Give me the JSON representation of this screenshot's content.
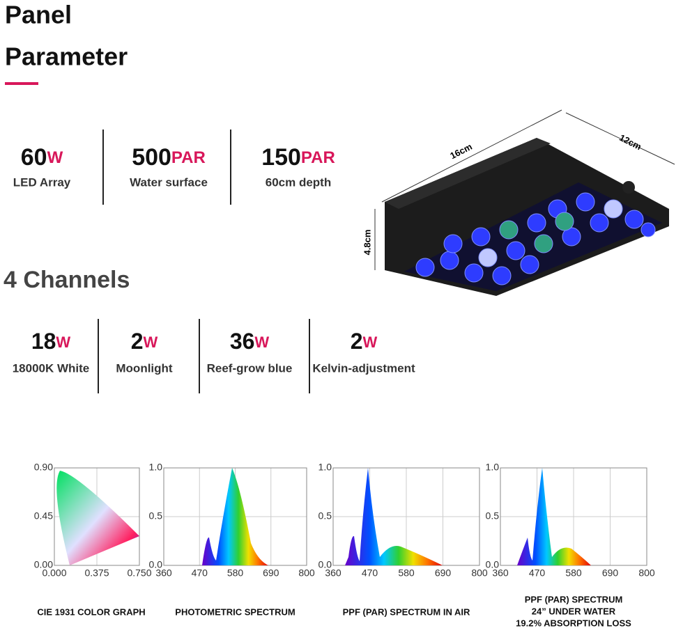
{
  "header": {
    "title": "Panel",
    "subtitle": "Parameter"
  },
  "specs": [
    {
      "value": "60",
      "unit": "W",
      "label": "LED Array"
    },
    {
      "value": "500",
      "unit": "PAR",
      "label": "Water surface"
    },
    {
      "value": "150",
      "unit": "PAR",
      "label": "60cm depth"
    }
  ],
  "dimensions": {
    "length": "16cm",
    "width": "12cm",
    "height": "4.8cm"
  },
  "channels_title": "4 Channels",
  "channels": [
    {
      "value": "18",
      "unit": "W",
      "label": "18000K White"
    },
    {
      "value": "2",
      "unit": "W",
      "label": "Moonlight"
    },
    {
      "value": "36",
      "unit": "W",
      "label": "Reef-grow blue"
    },
    {
      "value": "2",
      "unit": "W",
      "label": "Kelvin-adjustment"
    }
  ],
  "graphs": [
    {
      "caption": [
        "CIE 1931 COLOR GRAPH"
      ],
      "yticks": [
        "0.90",
        "0.45",
        "0.00"
      ],
      "xticks": [
        "0.000",
        "0.375",
        "0.750"
      ]
    },
    {
      "caption": [
        "PHOTOMETRIC SPECTRUM"
      ],
      "yticks": [
        "1.0",
        "0.5",
        "0.0"
      ],
      "xticks": [
        "360",
        "470",
        "580",
        "690",
        "800"
      ]
    },
    {
      "caption": [
        "PPF (PAR) SPECTRUM IN AIR"
      ],
      "yticks": [
        "1.0",
        "0.5",
        "0.0"
      ],
      "xticks": [
        "360",
        "470",
        "580",
        "690",
        "800"
      ]
    },
    {
      "caption": [
        "PPF (PAR) SPECTRUM",
        "24” UNDER WATER",
        "19.2% ABSORPTION LOSS"
      ],
      "yticks": [
        "1.0",
        "0.5",
        "0.0"
      ],
      "xticks": [
        "360",
        "470",
        "580",
        "690",
        "800"
      ]
    }
  ]
}
